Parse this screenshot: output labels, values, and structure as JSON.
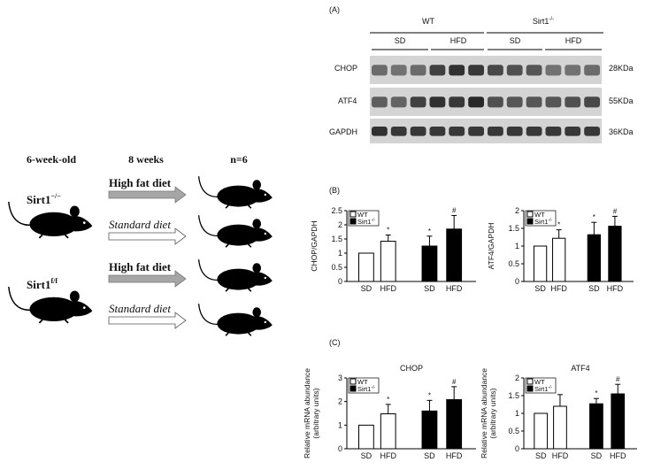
{
  "schematic": {
    "col_age": "6-week-old",
    "col_duration": "8 weeks",
    "col_n": "n=6",
    "group_ko": "Sirt1",
    "group_ko_sup": "−/−",
    "group_ff": "Sirt1",
    "group_ff_sup": "f/f",
    "diet_hfd": "High fat diet",
    "diet_sd": "Standard diet"
  },
  "panel_a": {
    "label": "(A)",
    "genotype_wt": "WT",
    "genotype_ko": "Sirt1",
    "genotype_ko_sup": "-/-",
    "diet_labels": [
      "SD",
      "HFD",
      "SD",
      "HFD"
    ],
    "bands": [
      {
        "name": "CHOP",
        "size": "28KDa"
      },
      {
        "name": "ATF4",
        "size": "55KDa"
      },
      {
        "name": "GAPDH",
        "size": "36KDa"
      }
    ]
  },
  "panel_b_label": "(B)",
  "panel_c_label": "(C)",
  "legend": {
    "wt": "WT",
    "ko": "Sirt1",
    "ko_sup": "-/-"
  },
  "colors": {
    "wt_bar": "#ffffff",
    "ko_bar": "#000000",
    "arrow_gray": "#a6a6a6"
  },
  "chart_data": [
    {
      "type": "bar",
      "panel": "B",
      "title": "",
      "ylabel": "CHOP/GAPDH",
      "ylim": [
        0,
        2.5
      ],
      "yticks": [
        "0",
        "0.5",
        "1",
        "1.5",
        "2",
        "2.5"
      ],
      "categories": [
        "SD",
        "HFD",
        "SD",
        "HFD"
      ],
      "values": [
        1.0,
        1.42,
        1.25,
        1.85
      ],
      "errors": [
        0,
        0.22,
        0.35,
        0.48
      ],
      "groups": [
        "WT",
        "WT",
        "Sirt1-/-",
        "Sirt1-/-"
      ],
      "annotations": [
        "",
        "*",
        "*",
        "#"
      ]
    },
    {
      "type": "bar",
      "panel": "B",
      "title": "",
      "ylabel": "ATF4/GAPDH",
      "ylim": [
        0,
        2
      ],
      "yticks": [
        "0",
        "0.5",
        "1",
        "1.5",
        "2"
      ],
      "categories": [
        "SD",
        "HFD",
        "SD",
        "HFD"
      ],
      "values": [
        1.0,
        1.22,
        1.32,
        1.56
      ],
      "errors": [
        0,
        0.24,
        0.35,
        0.28
      ],
      "groups": [
        "WT",
        "WT",
        "Sirt1-/-",
        "Sirt1-/-"
      ],
      "annotations": [
        "",
        "*",
        "*",
        "#"
      ]
    },
    {
      "type": "bar",
      "panel": "C",
      "title": "CHOP",
      "ylabel": "Relative mRNA abundance (arbitrary units)",
      "ylim": [
        0,
        3
      ],
      "yticks": [
        "0",
        "1",
        "2",
        "3"
      ],
      "categories": [
        "SD",
        "HFD",
        "SD",
        "HFD"
      ],
      "values": [
        1.0,
        1.48,
        1.6,
        2.08
      ],
      "errors": [
        0,
        0.4,
        0.45,
        0.55
      ],
      "groups": [
        "WT",
        "WT",
        "Sirt1-/-",
        "Sirt1-/-"
      ],
      "annotations": [
        "",
        "*",
        "*",
        "#"
      ]
    },
    {
      "type": "bar",
      "panel": "C",
      "title": "ATF4",
      "ylabel": "Relative mRNA abundance (arbitrary units)",
      "ylim": [
        0,
        2
      ],
      "yticks": [
        "0",
        "0.5",
        "1",
        "1.5",
        "2"
      ],
      "categories": [
        "SD",
        "HFD",
        "SD",
        "HFD"
      ],
      "values": [
        1.0,
        1.2,
        1.27,
        1.55
      ],
      "errors": [
        0,
        0.33,
        0.15,
        0.27
      ],
      "groups": [
        "WT",
        "WT",
        "Sirt1-/-",
        "Sirt1-/-"
      ],
      "annotations": [
        "",
        "",
        "*",
        "#"
      ]
    }
  ]
}
